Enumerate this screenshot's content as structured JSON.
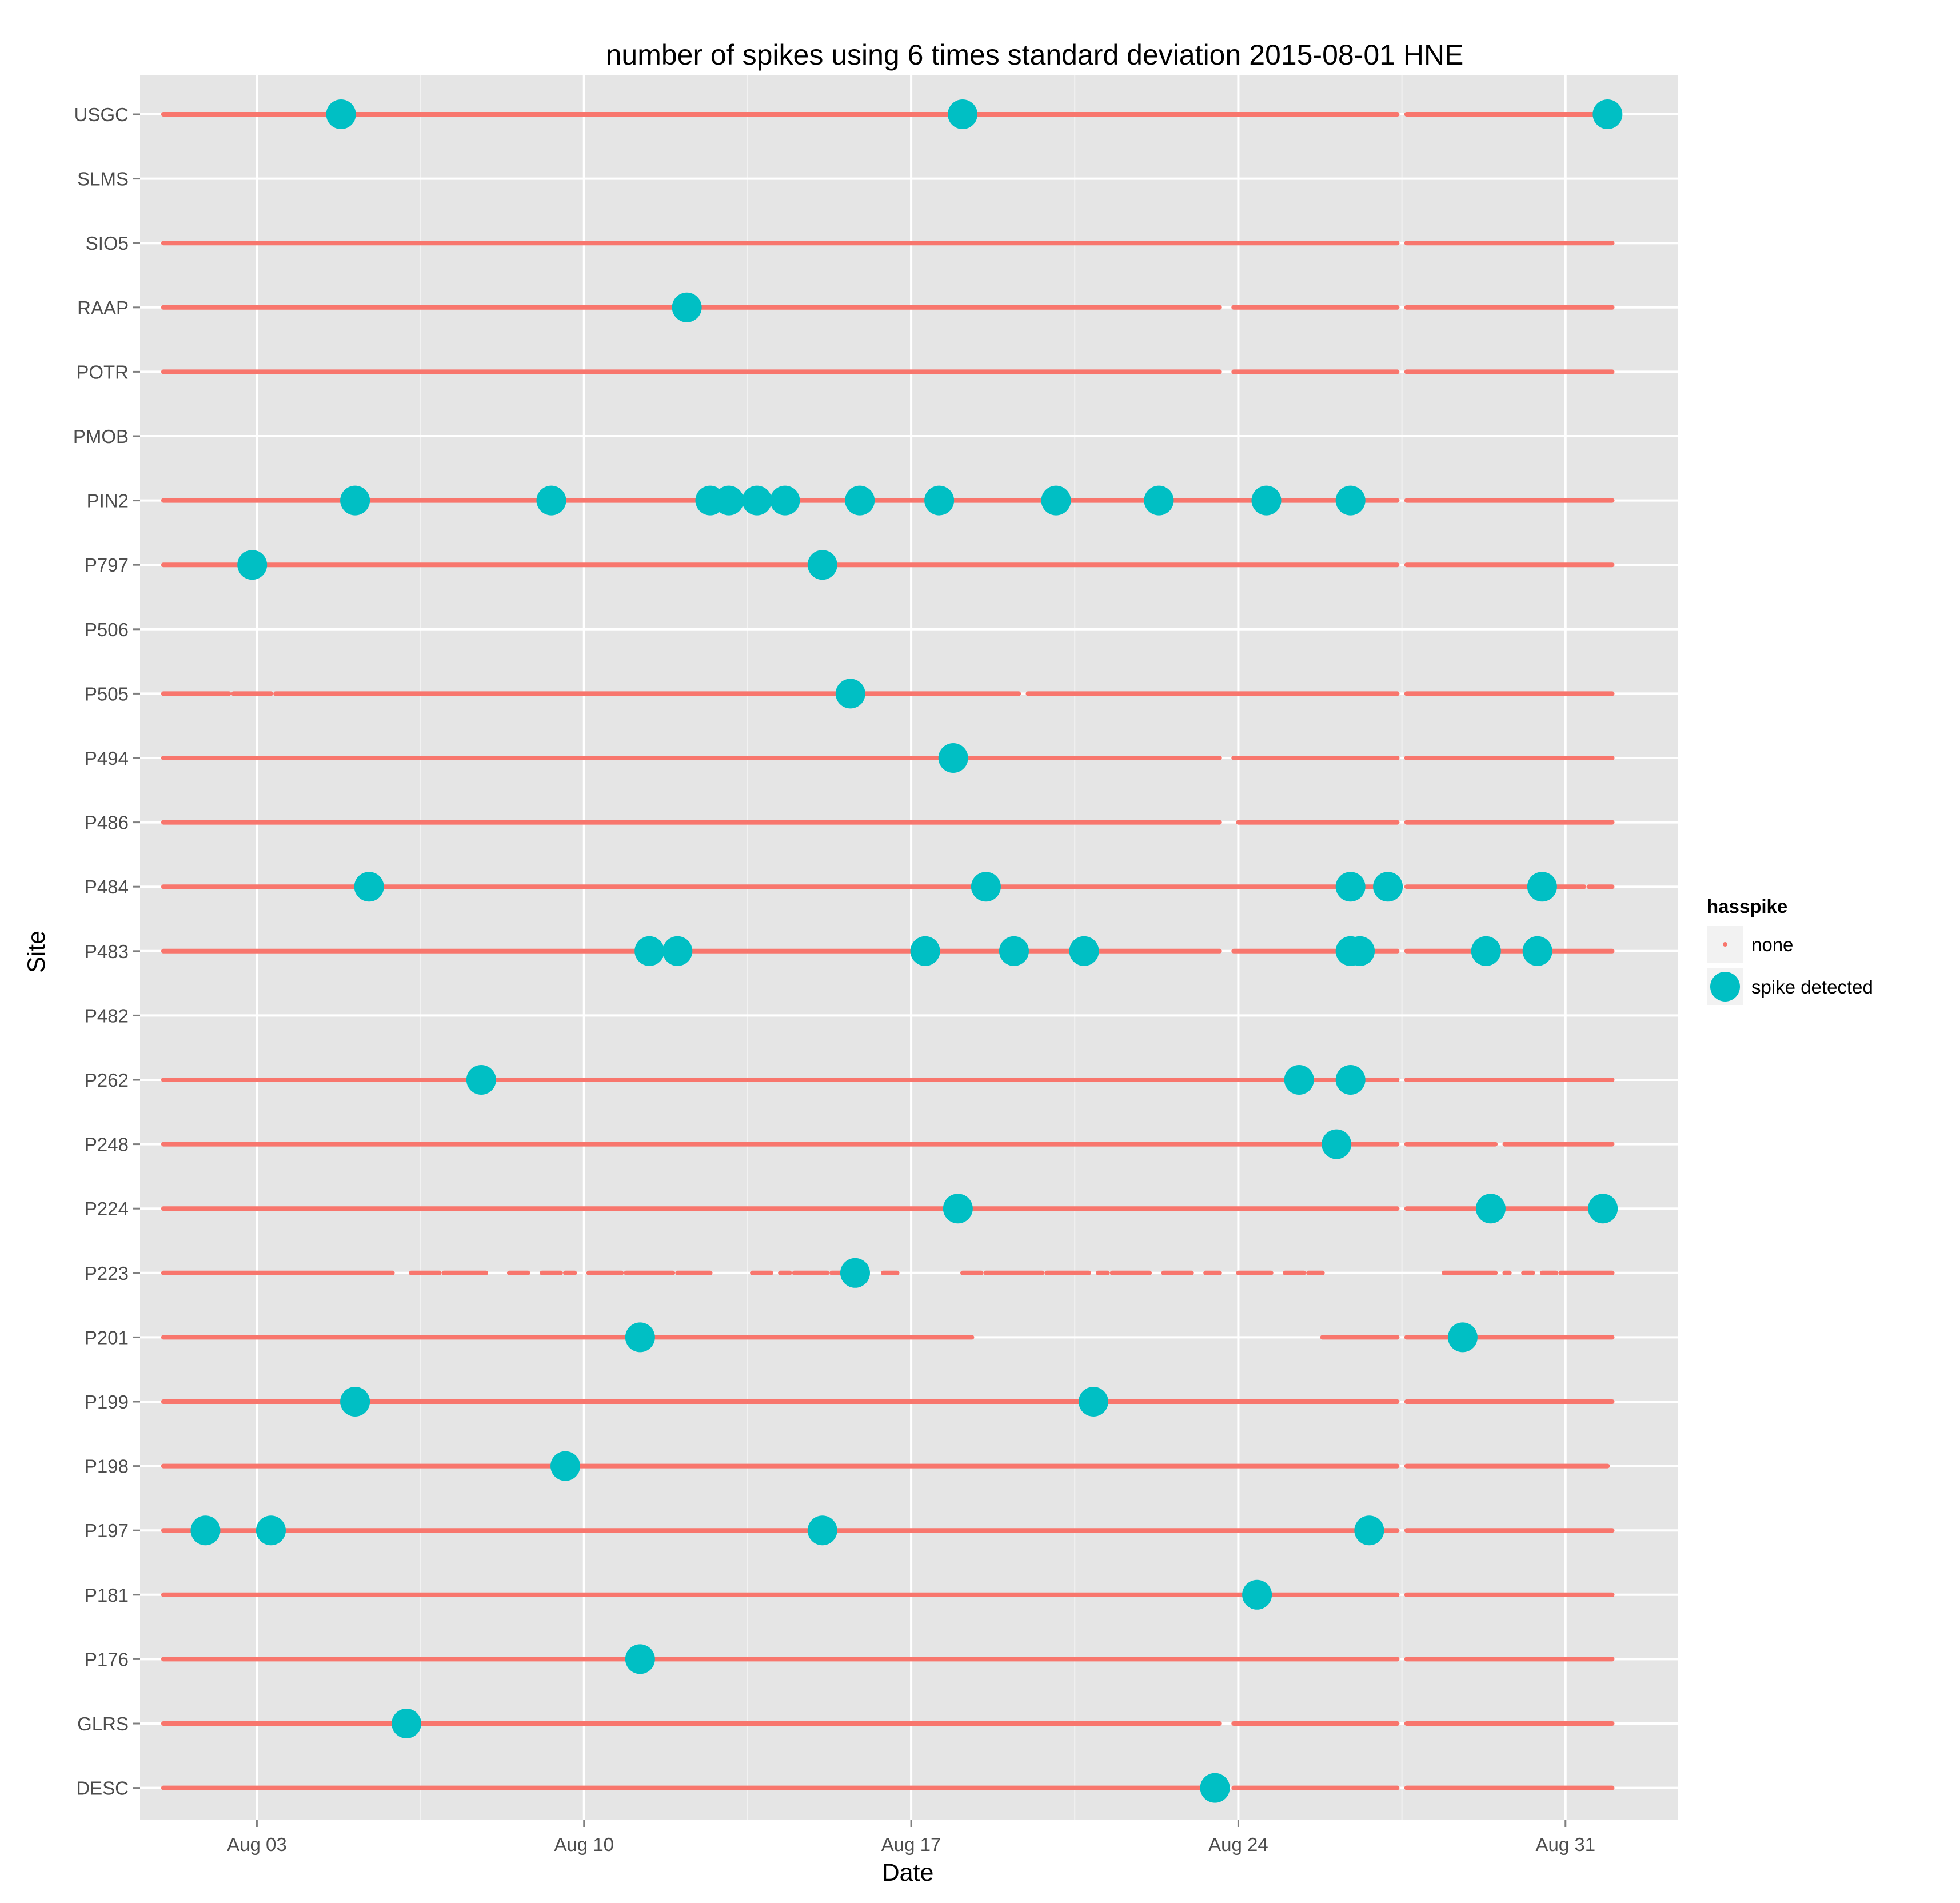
{
  "colors": {
    "panel": "#e5e5e5",
    "grid_major": "#ffffff",
    "grid_minor": "#f2f2f2",
    "none": "#F8766D",
    "spike": "#00BFC4",
    "tick": "#7f7f7f"
  },
  "legend": {
    "title": "hasspike",
    "entries": [
      {
        "key": "none",
        "label": "none"
      },
      {
        "key": "spike",
        "label": "spike detected"
      }
    ]
  },
  "chart_data": {
    "type": "scatter",
    "title": "number of spikes using  6 times standard deviation 2015-08-01 HNE",
    "xlabel": "Date",
    "ylabel": "Site",
    "x_unit": "day of August 2015",
    "xlim": [
      0.5,
      33.4
    ],
    "x_ticks": [
      {
        "value": 3,
        "label": "Aug 03"
      },
      {
        "value": 10,
        "label": "Aug 10"
      },
      {
        "value": 17,
        "label": "Aug 17"
      },
      {
        "value": 24,
        "label": "Aug 24"
      },
      {
        "value": 31,
        "label": "Aug 31"
      }
    ],
    "grid": true,
    "legend_position": "right",
    "sites": [
      "USGC",
      "SLMS",
      "SIO5",
      "RAAP",
      "POTR",
      "PMOB",
      "PIN2",
      "P797",
      "P506",
      "P505",
      "P494",
      "P486",
      "P484",
      "P483",
      "P482",
      "P262",
      "P248",
      "P224",
      "P223",
      "P201",
      "P199",
      "P198",
      "P197",
      "P181",
      "P176",
      "GLRS",
      "DESC"
    ],
    "none_segments": {
      "USGC": [
        [
          1.0,
          27.4
        ],
        [
          27.6,
          32.0
        ]
      ],
      "SLMS": [],
      "SIO5": [
        [
          1.0,
          27.4
        ],
        [
          27.6,
          32.0
        ]
      ],
      "RAAP": [
        [
          1.0,
          23.6
        ],
        [
          23.9,
          27.4
        ],
        [
          27.6,
          32.0
        ]
      ],
      "POTR": [
        [
          1.0,
          23.6
        ],
        [
          23.9,
          27.4
        ],
        [
          27.6,
          32.0
        ]
      ],
      "PMOB": [],
      "PIN2": [
        [
          1.0,
          27.4
        ],
        [
          27.6,
          32.0
        ]
      ],
      "P797": [
        [
          1.0,
          27.4
        ],
        [
          27.6,
          32.0
        ]
      ],
      "P506": [],
      "P505": [
        [
          1.0,
          2.4
        ],
        [
          2.5,
          3.3
        ],
        [
          3.4,
          19.3
        ],
        [
          19.5,
          27.4
        ],
        [
          27.6,
          32.0
        ]
      ],
      "P494": [
        [
          1.0,
          23.6
        ],
        [
          23.9,
          27.4
        ],
        [
          27.6,
          32.0
        ]
      ],
      "P486": [
        [
          1.0,
          23.6
        ],
        [
          24.0,
          27.4
        ],
        [
          27.6,
          32.0
        ]
      ],
      "P484": [
        [
          1.0,
          27.4
        ],
        [
          27.6,
          31.4
        ],
        [
          31.5,
          32.0
        ]
      ],
      "P483": [
        [
          1.0,
          23.6
        ],
        [
          23.9,
          27.4
        ],
        [
          27.6,
          32.0
        ]
      ],
      "P482": [],
      "P262": [
        [
          1.0,
          27.4
        ],
        [
          27.6,
          32.0
        ]
      ],
      "P248": [
        [
          1.0,
          27.4
        ],
        [
          27.6,
          29.5
        ],
        [
          29.7,
          32.0
        ]
      ],
      "P224": [
        [
          1.0,
          27.4
        ],
        [
          27.6,
          32.0
        ]
      ],
      "P223": [
        [
          1.0,
          5.9
        ],
        [
          6.3,
          6.9
        ],
        [
          7.0,
          7.9
        ],
        [
          8.4,
          8.8
        ],
        [
          9.1,
          9.5
        ],
        [
          9.6,
          9.8
        ],
        [
          10.1,
          10.8
        ],
        [
          10.9,
          11.9
        ],
        [
          12.0,
          12.7
        ],
        [
          13.6,
          14.0
        ],
        [
          14.2,
          14.4
        ],
        [
          14.5,
          15.2
        ],
        [
          15.3,
          16.0
        ],
        [
          16.4,
          16.7
        ],
        [
          18.1,
          18.5
        ],
        [
          18.6,
          19.8
        ],
        [
          19.9,
          20.8
        ],
        [
          21.0,
          21.2
        ],
        [
          21.3,
          22.1
        ],
        [
          22.4,
          23.0
        ],
        [
          23.3,
          23.6
        ],
        [
          24.0,
          24.7
        ],
        [
          25.0,
          25.4
        ],
        [
          25.5,
          25.8
        ],
        [
          28.4,
          29.5
        ],
        [
          29.7,
          29.8
        ],
        [
          30.1,
          30.3
        ],
        [
          30.5,
          30.8
        ],
        [
          30.9,
          32.0
        ]
      ],
      "P201": [
        [
          1.0,
          18.3
        ],
        [
          25.8,
          27.4
        ],
        [
          27.6,
          32.0
        ]
      ],
      "P199": [
        [
          1.0,
          27.4
        ],
        [
          27.6,
          32.0
        ]
      ],
      "P198": [
        [
          1.0,
          27.4
        ],
        [
          27.6,
          31.9
        ]
      ],
      "P197": [
        [
          1.0,
          27.4
        ],
        [
          27.6,
          32.0
        ]
      ],
      "P181": [
        [
          1.0,
          27.4
        ],
        [
          27.6,
          32.0
        ]
      ],
      "P176": [
        [
          1.0,
          27.4
        ],
        [
          27.6,
          32.0
        ]
      ],
      "GLRS": [
        [
          1.0,
          23.6
        ],
        [
          23.9,
          27.4
        ],
        [
          27.6,
          32.0
        ]
      ],
      "DESC": [
        [
          1.0,
          23.6
        ],
        [
          23.9,
          27.4
        ],
        [
          27.6,
          32.0
        ]
      ]
    },
    "spikes": {
      "USGC": [
        4.8,
        18.1,
        31.9
      ],
      "SLMS": [],
      "SIO5": [],
      "RAAP": [
        12.2
      ],
      "POTR": [],
      "PMOB": [],
      "PIN2": [
        5.1,
        9.3,
        12.7,
        13.1,
        13.7,
        14.3,
        15.9,
        17.6,
        20.1,
        22.3,
        24.6,
        26.4
      ],
      "P797": [
        2.9,
        15.1
      ],
      "P506": [],
      "P505": [
        15.7
      ],
      "P494": [
        17.9
      ],
      "P486": [],
      "P484": [
        5.4,
        18.6,
        26.4,
        27.2,
        30.5
      ],
      "P483": [
        11.4,
        12.0,
        17.3,
        19.2,
        20.7,
        26.4,
        26.6,
        29.3,
        30.4
      ],
      "P482": [],
      "P262": [
        7.8,
        25.3,
        26.4
      ],
      "P248": [
        26.1
      ],
      "P224": [
        18.0,
        29.4,
        31.8
      ],
      "P223": [
        15.8
      ],
      "P201": [
        11.2,
        28.8
      ],
      "P199": [
        5.1,
        20.9
      ],
      "P198": [
        9.6
      ],
      "P197": [
        1.9,
        3.3,
        15.1,
        26.8
      ],
      "P181": [
        24.4
      ],
      "P176": [
        11.2
      ],
      "GLRS": [
        6.2
      ],
      "DESC": [
        23.5
      ]
    }
  }
}
